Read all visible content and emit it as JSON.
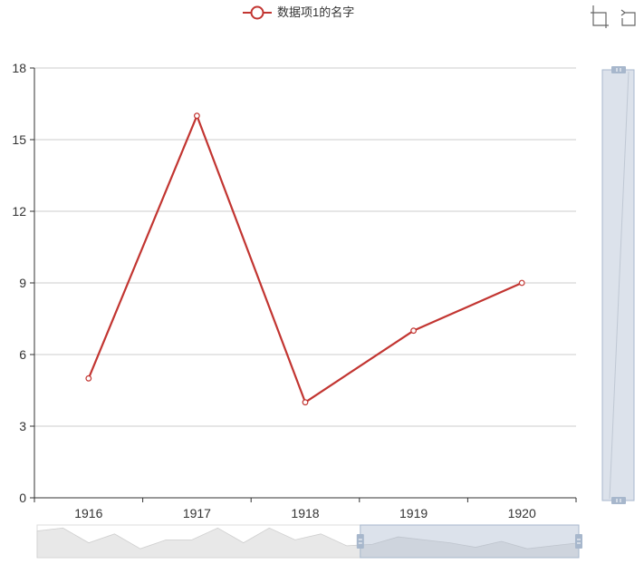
{
  "chart_data": {
    "type": "line",
    "title": "",
    "xlabel": "",
    "ylabel": "",
    "categories": [
      "1916",
      "1917",
      "1918",
      "1919",
      "1920"
    ],
    "series": [
      {
        "name": "数据项1的名字",
        "values": [
          5,
          16,
          4,
          7,
          9
        ],
        "color": "#c23531"
      }
    ],
    "ylim": [
      0,
      18
    ],
    "yticks": [
      "0",
      "3",
      "6",
      "9",
      "12",
      "15",
      "18"
    ],
    "grid": true,
    "legend": {
      "position": "top-center"
    },
    "toolbox": {
      "items": [
        "zoom-icon",
        "zoom-reset-icon"
      ]
    },
    "datazoom": {
      "horizontal": {
        "range_start": 1919,
        "range_end": 1920
      },
      "vertical": {
        "range": [
          0,
          18
        ]
      },
      "shadow_values": [
        9,
        10,
        5,
        8,
        3,
        6,
        6,
        10,
        5,
        10,
        6,
        8,
        4,
        4.5,
        7,
        6,
        5,
        3.5,
        5.5,
        3,
        4,
        5
      ]
    }
  }
}
